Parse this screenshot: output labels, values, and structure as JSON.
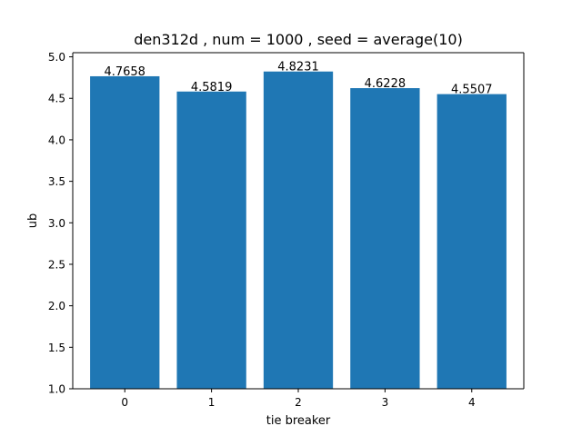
{
  "chart_data": {
    "type": "bar",
    "title": "den312d , num = 1000 , seed = average(10)",
    "xlabel": "tie breaker",
    "ylabel": "ub",
    "categories": [
      "0",
      "1",
      "2",
      "3",
      "4"
    ],
    "values": [
      4.7658,
      4.5819,
      4.8231,
      4.6228,
      4.5507
    ],
    "value_labels": [
      "4.7658",
      "4.5819",
      "4.8231",
      "4.6228",
      "4.5507"
    ],
    "ylim": [
      1.0,
      5.05
    ],
    "yticks": [
      1.0,
      1.5,
      2.0,
      2.5,
      3.0,
      3.5,
      4.0,
      4.5,
      5.0
    ],
    "ytick_labels": [
      "1.0",
      "1.5",
      "2.0",
      "2.5",
      "3.0",
      "3.5",
      "4.0",
      "4.5",
      "5.0"
    ],
    "bar_color": "#1f77b4",
    "grid": false,
    "legend": "none"
  }
}
